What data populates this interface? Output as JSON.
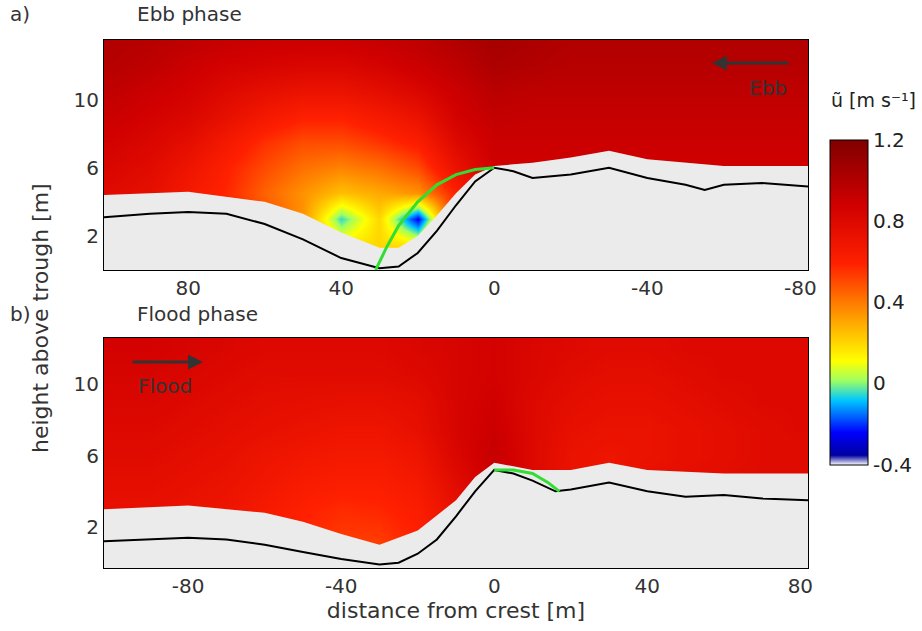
{
  "chart_data": [
    {
      "type": "heatmap",
      "panel": "a)",
      "title": "Ebb phase",
      "flow_label": "Ebb",
      "flow_direction": "left",
      "ylabel": "height above trough [m]",
      "xlim": [
        102,
        -82
      ],
      "xticks": [
        80,
        40,
        0,
        -40,
        -80
      ],
      "ylim": [
        0,
        13.5
      ],
      "yticks": [
        2,
        6,
        10
      ],
      "colorbar": {
        "title": "ũ [m s⁻¹]",
        "range": [
          -0.4,
          1.2
        ],
        "ticks": [
          1.2,
          0.8,
          0.4,
          0,
          -0.4
        ]
      },
      "x": [
        100,
        90,
        80,
        70,
        60,
        50,
        40,
        30,
        20,
        10,
        0,
        -10,
        -20,
        -30,
        -40,
        -50,
        -60,
        -70,
        -80
      ],
      "y": [
        0,
        1.5,
        3,
        4.5,
        6,
        7.5,
        9,
        10.5,
        12,
        13.5
      ],
      "z": [
        [
          0.7,
          0.7,
          0.7,
          0.7,
          0.6,
          0.4,
          0.2,
          0.25,
          0.4,
          0.7,
          0.8,
          0.8,
          0.8,
          0.8,
          0.8,
          0.8,
          0.8,
          0.8,
          0.8
        ],
        [
          0.72,
          0.72,
          0.7,
          0.65,
          0.55,
          0.35,
          0.15,
          0.2,
          0.15,
          0.65,
          0.8,
          0.82,
          0.82,
          0.82,
          0.82,
          0.82,
          0.82,
          0.82,
          0.82
        ],
        [
          0.75,
          0.72,
          0.68,
          0.62,
          0.5,
          0.35,
          -0.05,
          0.2,
          -0.25,
          0.6,
          0.82,
          0.84,
          0.84,
          0.84,
          0.84,
          0.84,
          0.84,
          0.84,
          0.84
        ],
        [
          0.78,
          0.75,
          0.66,
          0.58,
          0.45,
          0.35,
          0.25,
          0.3,
          0.35,
          0.6,
          0.85,
          0.86,
          0.86,
          0.86,
          0.86,
          0.86,
          0.86,
          0.86,
          0.86
        ],
        [
          0.82,
          0.78,
          0.7,
          0.6,
          0.5,
          0.42,
          0.38,
          0.42,
          0.5,
          0.72,
          0.88,
          0.88,
          0.88,
          0.88,
          0.88,
          0.88,
          0.88,
          0.88,
          0.88
        ],
        [
          0.86,
          0.82,
          0.76,
          0.66,
          0.56,
          0.5,
          0.5,
          0.55,
          0.62,
          0.8,
          0.9,
          0.9,
          0.9,
          0.9,
          0.9,
          0.9,
          0.9,
          0.9,
          0.9
        ],
        [
          0.9,
          0.86,
          0.82,
          0.74,
          0.66,
          0.6,
          0.6,
          0.65,
          0.72,
          0.86,
          0.93,
          0.92,
          0.92,
          0.92,
          0.92,
          0.92,
          0.92,
          0.92,
          0.92
        ],
        [
          0.94,
          0.9,
          0.86,
          0.8,
          0.75,
          0.72,
          0.72,
          0.76,
          0.82,
          0.9,
          0.97,
          0.95,
          0.95,
          0.95,
          0.95,
          0.95,
          0.95,
          0.95,
          0.95
        ],
        [
          0.98,
          0.95,
          0.9,
          0.86,
          0.84,
          0.82,
          0.82,
          0.85,
          0.9,
          0.95,
          1.02,
          1.0,
          0.98,
          0.98,
          0.98,
          0.98,
          0.98,
          0.98,
          0.98
        ],
        [
          1.0,
          0.98,
          0.95,
          0.92,
          0.9,
          0.9,
          0.9,
          0.92,
          0.95,
          1.0,
          1.05,
          1.02,
          1.0,
          1.0,
          1.0,
          1.0,
          1.0,
          1.0,
          1.0
        ]
      ],
      "bed": {
        "x": [
          102,
          90,
          80,
          70,
          60,
          50,
          40,
          30,
          25,
          20,
          15,
          10,
          5,
          0,
          -5,
          -10,
          -20,
          -30,
          -40,
          -50,
          -55,
          -60,
          -70,
          -82
        ],
        "y": [
          3.1,
          3.3,
          3.4,
          3.3,
          2.7,
          1.8,
          0.7,
          0.1,
          0.2,
          1.0,
          2.3,
          3.8,
          5.2,
          6.0,
          5.8,
          5.4,
          5.6,
          6.0,
          5.4,
          5.0,
          4.7,
          5.0,
          5.1,
          4.9
        ]
      },
      "blanking": {
        "x": [
          102,
          80,
          60,
          50,
          40,
          30,
          25,
          20,
          15,
          10,
          5,
          0,
          -5,
          -10,
          -20,
          -30,
          -40,
          -60,
          -82
        ],
        "y": [
          4.4,
          4.6,
          4.0,
          3.3,
          2.2,
          1.3,
          1.3,
          2.0,
          3.2,
          4.5,
          5.6,
          6.1,
          6.2,
          6.3,
          6.6,
          7.0,
          6.5,
          6.1,
          6.1
        ]
      },
      "separation": {
        "x": [
          0,
          5,
          10,
          15,
          20,
          25,
          28,
          31
        ],
        "y": [
          6,
          5.9,
          5.6,
          5.0,
          4.0,
          2.6,
          1.4,
          0
        ]
      }
    },
    {
      "type": "heatmap",
      "panel": "b)",
      "title": "Flood phase",
      "flow_label": "Flood",
      "flow_direction": "right",
      "xlabel": "distance from crest [m]",
      "xlim": [
        -102,
        82
      ],
      "xticks": [
        -80,
        -40,
        0,
        40,
        80
      ],
      "ylim": [
        -0.3,
        12.6
      ],
      "yticks": [
        2,
        6,
        10
      ],
      "x": [
        -100,
        -90,
        -80,
        -70,
        -60,
        -50,
        -40,
        -30,
        -20,
        -10,
        0,
        10,
        20,
        30,
        40,
        50,
        60,
        70,
        80
      ],
      "y": [
        0,
        1.5,
        3,
        4.5,
        6,
        7.5,
        9,
        10.5,
        12,
        13.5
      ],
      "z": [
        [
          0.7,
          0.7,
          0.7,
          0.66,
          0.6,
          0.55,
          0.5,
          0.5,
          0.55,
          0.65,
          0.8,
          0.8,
          0.78,
          0.78,
          0.78,
          0.78,
          0.78,
          0.78,
          0.78
        ],
        [
          0.72,
          0.72,
          0.7,
          0.68,
          0.62,
          0.58,
          0.54,
          0.54,
          0.6,
          0.7,
          0.82,
          0.8,
          0.78,
          0.78,
          0.78,
          0.78,
          0.78,
          0.78,
          0.78
        ],
        [
          0.74,
          0.74,
          0.72,
          0.7,
          0.65,
          0.6,
          0.57,
          0.58,
          0.62,
          0.74,
          0.85,
          0.8,
          0.76,
          0.76,
          0.78,
          0.78,
          0.78,
          0.78,
          0.78
        ],
        [
          0.76,
          0.76,
          0.74,
          0.72,
          0.68,
          0.64,
          0.62,
          0.62,
          0.66,
          0.78,
          0.9,
          0.8,
          0.72,
          0.72,
          0.74,
          0.76,
          0.78,
          0.78,
          0.78
        ],
        [
          0.78,
          0.78,
          0.76,
          0.74,
          0.7,
          0.68,
          0.66,
          0.66,
          0.7,
          0.82,
          0.92,
          0.8,
          0.72,
          0.7,
          0.72,
          0.74,
          0.76,
          0.78,
          0.78
        ],
        [
          0.8,
          0.8,
          0.78,
          0.76,
          0.74,
          0.72,
          0.7,
          0.7,
          0.74,
          0.84,
          0.9,
          0.8,
          0.74,
          0.72,
          0.72,
          0.74,
          0.76,
          0.78,
          0.8
        ],
        [
          0.82,
          0.82,
          0.8,
          0.78,
          0.76,
          0.75,
          0.74,
          0.74,
          0.76,
          0.84,
          0.88,
          0.8,
          0.76,
          0.74,
          0.74,
          0.76,
          0.78,
          0.8,
          0.8
        ],
        [
          0.84,
          0.84,
          0.82,
          0.8,
          0.78,
          0.78,
          0.78,
          0.78,
          0.8,
          0.84,
          0.86,
          0.82,
          0.78,
          0.76,
          0.76,
          0.78,
          0.8,
          0.8,
          0.8
        ],
        [
          0.86,
          0.86,
          0.84,
          0.82,
          0.8,
          0.8,
          0.8,
          0.8,
          0.82,
          0.84,
          0.86,
          0.82,
          0.8,
          0.78,
          0.78,
          0.8,
          0.8,
          0.8,
          0.8
        ],
        [
          0.86,
          0.86,
          0.84,
          0.82,
          0.8,
          0.8,
          0.8,
          0.8,
          0.82,
          0.84,
          0.86,
          0.82,
          0.8,
          0.78,
          0.78,
          0.8,
          0.8,
          0.8,
          0.8
        ]
      ],
      "bed": {
        "x": [
          -102,
          -90,
          -80,
          -70,
          -60,
          -50,
          -40,
          -30,
          -25,
          -20,
          -15,
          -10,
          -5,
          0,
          5,
          10,
          16,
          20,
          30,
          40,
          50,
          60,
          70,
          82
        ],
        "y": [
          1.2,
          1.3,
          1.4,
          1.3,
          1.0,
          0.6,
          0.2,
          -0.1,
          0.0,
          0.5,
          1.3,
          2.6,
          4.0,
          5.2,
          5.0,
          4.6,
          4.0,
          4.1,
          4.5,
          4.0,
          3.7,
          3.8,
          3.6,
          3.5
        ]
      },
      "blanking": {
        "x": [
          -102,
          -80,
          -60,
          -50,
          -40,
          -30,
          -20,
          -10,
          -5,
          0,
          5,
          10,
          20,
          30,
          40,
          60,
          82
        ],
        "y": [
          3.0,
          3.2,
          2.8,
          2.3,
          1.6,
          1.0,
          1.8,
          3.5,
          4.8,
          5.6,
          5.4,
          5.2,
          5.2,
          5.6,
          5.2,
          5.0,
          5.0
        ]
      },
      "separation": {
        "x": [
          0,
          5,
          10,
          14,
          17
        ],
        "y": [
          5.2,
          5.2,
          5.0,
          4.5,
          4.0
        ]
      }
    }
  ]
}
